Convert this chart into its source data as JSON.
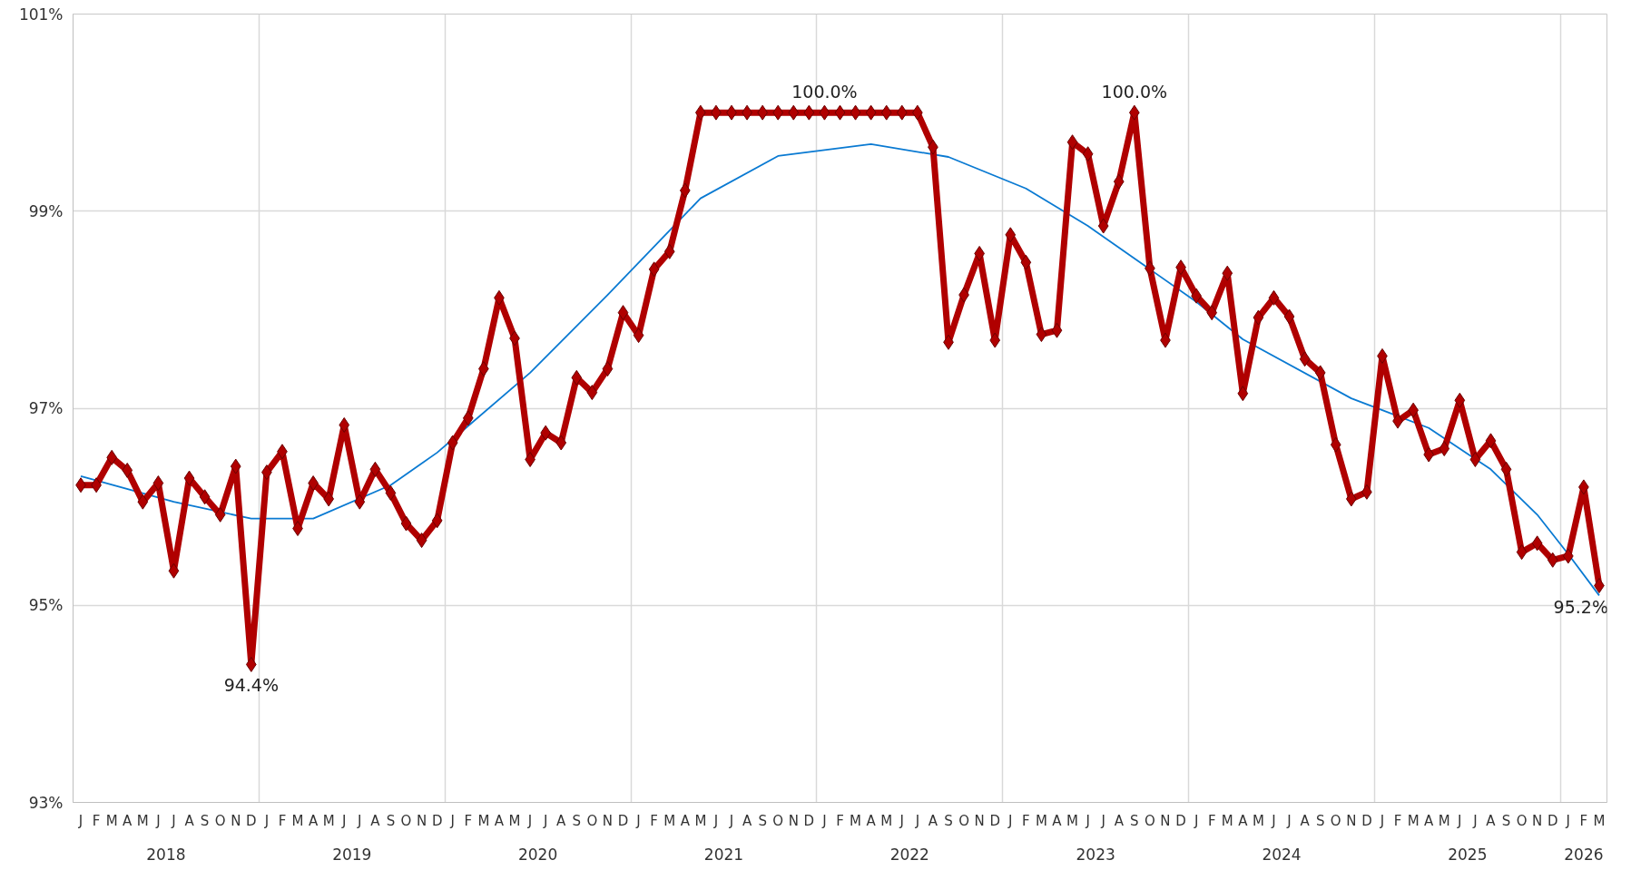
{
  "chart_data": {
    "type": "line",
    "categories": [
      "J",
      "F",
      "M",
      "A",
      "M",
      "J",
      "J",
      "A",
      "S",
      "O",
      "N",
      "D",
      "J",
      "F",
      "M",
      "A",
      "M",
      "J",
      "J",
      "A",
      "S",
      "O",
      "N",
      "D",
      "J",
      "F",
      "M",
      "A",
      "M",
      "J",
      "J",
      "A",
      "S",
      "O",
      "N",
      "D",
      "J",
      "F",
      "M",
      "A",
      "M",
      "J",
      "J",
      "A",
      "S",
      "O",
      "N",
      "D",
      "J",
      "F",
      "M",
      "A",
      "M",
      "J",
      "J",
      "A",
      "S",
      "O",
      "N",
      "D",
      "J",
      "F",
      "M",
      "A",
      "M",
      "J",
      "J",
      "A",
      "S",
      "O",
      "N",
      "D",
      "J",
      "F",
      "M",
      "A",
      "M",
      "J",
      "J",
      "A",
      "S",
      "O",
      "N",
      "D",
      "J",
      "F",
      "M",
      "A",
      "M",
      "J",
      "J",
      "A",
      "S",
      "O",
      "N",
      "D",
      "J",
      "F",
      "M"
    ],
    "series": [
      {
        "color": "#b00000",
        "marker": "diamond",
        "values": [
          96.22,
          96.22,
          96.5,
          96.37,
          96.05,
          96.24,
          95.35,
          96.29,
          96.1,
          95.92,
          96.41,
          94.4,
          96.35,
          96.56,
          95.78,
          96.24,
          96.08,
          96.83,
          96.05,
          96.38,
          96.14,
          95.83,
          95.66,
          95.86,
          96.65,
          96.9,
          97.4,
          98.12,
          97.71,
          96.48,
          96.75,
          96.65,
          97.31,
          97.16,
          97.4,
          97.97,
          97.74,
          98.41,
          98.59,
          99.21,
          100.0,
          100.0,
          100.0,
          100.0,
          100.0,
          100.0,
          100.0,
          100.0,
          100.0,
          100.0,
          100.0,
          100.0,
          100.0,
          100.0,
          100.0,
          99.65,
          97.67,
          98.15,
          98.57,
          97.69,
          98.76,
          98.48,
          97.75,
          97.79,
          99.7,
          99.58,
          98.85,
          99.3,
          100.0,
          98.42,
          97.69,
          98.43,
          98.14,
          97.97,
          98.37,
          97.15,
          97.92,
          98.12,
          97.93,
          97.5,
          97.36,
          96.63,
          96.08,
          96.15,
          97.53,
          96.87,
          96.98,
          96.53,
          96.59,
          97.08,
          96.48,
          96.67,
          96.38,
          95.54,
          95.63,
          95.46,
          95.5,
          96.2,
          95.2
        ],
        "value_labels": [
          null,
          null,
          null,
          null,
          null,
          null,
          null,
          null,
          null,
          null,
          null,
          "94.4%",
          null,
          null,
          null,
          null,
          null,
          null,
          null,
          null,
          null,
          null,
          null,
          null,
          null,
          null,
          null,
          null,
          null,
          null,
          null,
          null,
          null,
          null,
          null,
          null,
          null,
          null,
          null,
          null,
          null,
          null,
          null,
          null,
          null,
          null,
          null,
          null,
          "100.0%",
          null,
          null,
          null,
          null,
          null,
          null,
          null,
          null,
          null,
          null,
          null,
          null,
          null,
          null,
          null,
          null,
          null,
          null,
          null,
          "100.0%",
          null,
          null,
          null,
          null,
          null,
          null,
          null,
          null,
          null,
          null,
          null,
          null,
          null,
          null,
          null,
          null,
          null,
          null,
          null,
          null,
          null,
          null,
          null,
          null,
          null,
          null,
          null,
          null,
          null,
          "95.2%"
        ]
      },
      {
        "type": "line",
        "color": "#0a7ad2",
        "marker": "none",
        "values": [
          96.31,
          null,
          null,
          null,
          null,
          null,
          96.05,
          null,
          null,
          null,
          null,
          95.88,
          null,
          null,
          null,
          95.88,
          null,
          null,
          null,
          null,
          96.22,
          null,
          null,
          96.55,
          null,
          null,
          null,
          null,
          null,
          97.36,
          null,
          null,
          null,
          null,
          98.15,
          null,
          null,
          null,
          null,
          null,
          99.13,
          null,
          null,
          null,
          null,
          99.56,
          null,
          null,
          null,
          null,
          null,
          99.68,
          null,
          null,
          null,
          null,
          99.55,
          null,
          null,
          null,
          null,
          99.23,
          null,
          null,
          null,
          98.85,
          null,
          null,
          null,
          null,
          null,
          null,
          98.08,
          null,
          null,
          97.7,
          null,
          null,
          null,
          null,
          null,
          null,
          97.1,
          null,
          null,
          null,
          null,
          96.8,
          null,
          null,
          null,
          96.38,
          null,
          null,
          95.92,
          null,
          95.52,
          null,
          95.1
        ]
      }
    ],
    "ylim": [
      93,
      101
    ],
    "yticks": [
      {
        "value": 93,
        "label": "93%"
      },
      {
        "value": 95,
        "label": "95%"
      },
      {
        "value": 97,
        "label": "97%"
      },
      {
        "value": 99,
        "label": "99%"
      },
      {
        "value": 101,
        "label": "101%"
      }
    ],
    "grid": true,
    "annotations": [
      "2018",
      "2019",
      "2020",
      "2021",
      "2022",
      "2023",
      "2024",
      "2025",
      "2026"
    ]
  }
}
